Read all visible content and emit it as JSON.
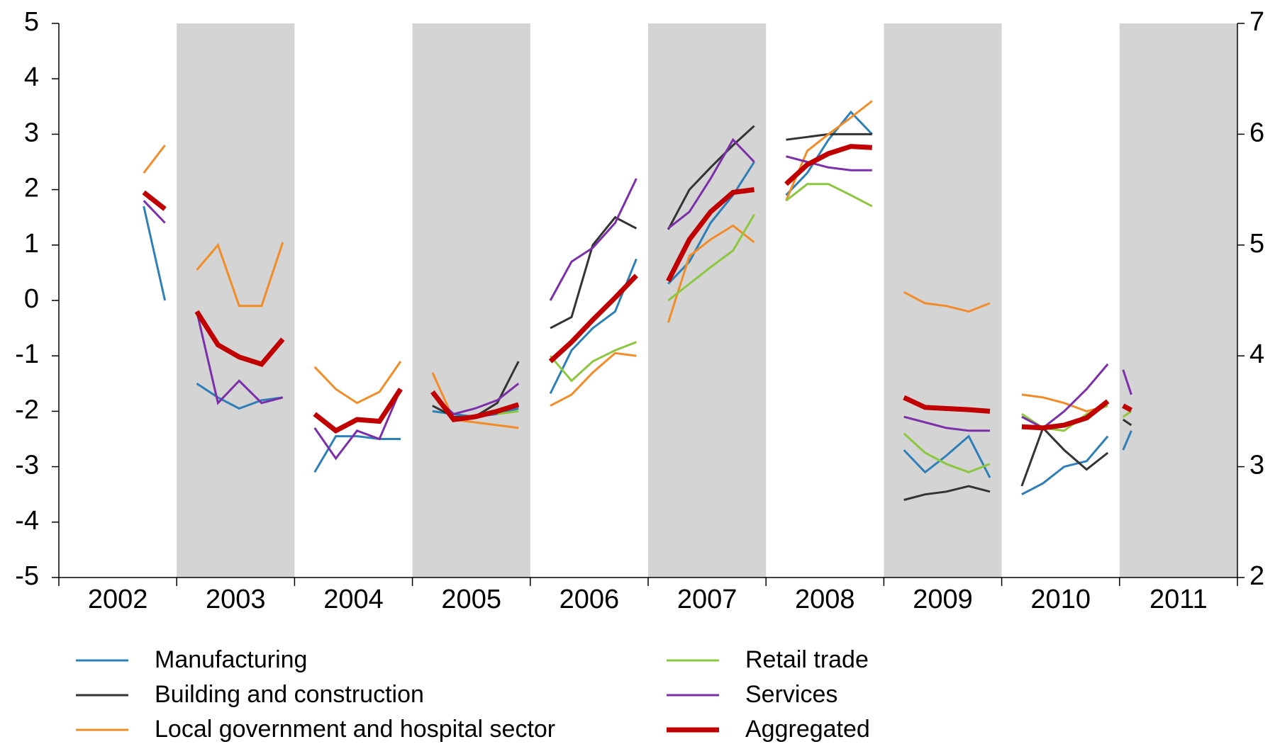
{
  "chart_data": {
    "type": "line",
    "x": [
      2002.17,
      2002.35,
      2002.53,
      2002.72,
      2002.9,
      2003,
      2003.17,
      2003.35,
      2003.53,
      2003.72,
      2003.9,
      2004,
      2004.17,
      2004.35,
      2004.53,
      2004.72,
      2004.9,
      2005,
      2005.17,
      2005.35,
      2005.53,
      2005.72,
      2005.9,
      2006,
      2006.17,
      2006.35,
      2006.53,
      2006.72,
      2006.9,
      2007,
      2007.17,
      2007.35,
      2007.53,
      2007.72,
      2007.9,
      2008,
      2008.17,
      2008.35,
      2008.53,
      2008.72,
      2008.9,
      2009,
      2009.17,
      2009.35,
      2009.53,
      2009.72,
      2009.9,
      2010,
      2010.17,
      2010.35,
      2010.53,
      2010.72,
      2010.9,
      2011,
      2011.03,
      2011.1
    ],
    "xlim": [
      2002,
      2012
    ],
    "xticks": [
      {
        "value": 2002.5,
        "label": "2002"
      },
      {
        "value": 2003.5,
        "label": "2003"
      },
      {
        "value": 2004.5,
        "label": "2004"
      },
      {
        "value": 2005.5,
        "label": "2005"
      },
      {
        "value": 2006.5,
        "label": "2006"
      },
      {
        "value": 2007.5,
        "label": "2007"
      },
      {
        "value": 2008.5,
        "label": "2008"
      },
      {
        "value": 2009.5,
        "label": "2009"
      },
      {
        "value": 2010.5,
        "label": "2010"
      },
      {
        "value": 2011.5,
        "label": "2011"
      }
    ],
    "ylim": [
      -5,
      5
    ],
    "yticks": [
      -5,
      -4,
      -3,
      -2,
      -1,
      0,
      1,
      2,
      3,
      4,
      5
    ],
    "y2lim": [
      2,
      7
    ],
    "y2ticks": [
      2,
      3,
      4,
      5,
      6,
      7
    ],
    "shading": "#d4d4d4",
    "legend": "bottom",
    "series": [
      {
        "name": "Manufacturing",
        "color": "#2e7fb8",
        "values": [
          null,
          null,
          null,
          1.7,
          0.0,
          null,
          -1.5,
          -1.75,
          -1.95,
          -1.8,
          -1.75,
          null,
          -3.1,
          -2.45,
          -2.45,
          -2.5,
          -2.5,
          null,
          -2.0,
          -2.05,
          -2.1,
          -2.05,
          -1.95,
          null,
          -1.68,
          -0.9,
          -0.5,
          -0.2,
          0.75,
          null,
          0.3,
          0.7,
          1.4,
          1.9,
          2.5,
          null,
          1.9,
          2.3,
          2.9,
          3.4,
          3.0,
          null,
          -2.7,
          -3.1,
          -2.8,
          -2.45,
          -3.2,
          null,
          -3.5,
          -3.3,
          -3.0,
          -2.9,
          -2.45,
          null,
          -2.7,
          -2.35
        ]
      },
      {
        "name": "Building and construction",
        "color": "#333333",
        "values": [
          null,
          null,
          null,
          null,
          null,
          null,
          null,
          null,
          null,
          null,
          null,
          null,
          null,
          null,
          null,
          null,
          null,
          null,
          -1.9,
          -2.1,
          -2.1,
          -1.85,
          -1.1,
          null,
          -0.5,
          -0.3,
          1.0,
          1.5,
          1.3,
          null,
          1.28,
          2.0,
          2.4,
          2.8,
          3.15,
          null,
          2.9,
          2.95,
          3.0,
          3.0,
          3.0,
          null,
          -3.6,
          -3.5,
          -3.45,
          -3.35,
          -3.45,
          null,
          -3.35,
          -2.3,
          -2.7,
          -3.05,
          -2.75,
          null,
          -2.15,
          -2.25
        ]
      },
      {
        "name": "Local government and hospital sector",
        "color": "#f28c28",
        "values": [
          null,
          null,
          null,
          2.3,
          2.8,
          null,
          0.55,
          1.0,
          -0.1,
          -0.1,
          1.05,
          null,
          -1.2,
          -1.6,
          -1.85,
          -1.65,
          -1.1,
          null,
          -1.3,
          -2.15,
          -2.2,
          -2.25,
          -2.3,
          null,
          -1.9,
          -1.7,
          -1.3,
          -0.95,
          -1.0,
          null,
          -0.4,
          0.8,
          1.1,
          1.35,
          1.05,
          null,
          1.8,
          2.7,
          3.0,
          3.3,
          3.6,
          null,
          0.15,
          -0.05,
          -0.1,
          -0.2,
          -0.05,
          null,
          -1.7,
          -1.75,
          -1.85,
          -2.0,
          -1.9,
          null,
          null,
          null
        ]
      },
      {
        "name": "Retail trade",
        "color": "#8dc63f",
        "values": [
          null,
          null,
          null,
          null,
          null,
          null,
          null,
          null,
          null,
          null,
          null,
          null,
          null,
          null,
          null,
          null,
          null,
          null,
          null,
          null,
          null,
          -2.05,
          -2.0,
          null,
          -1.0,
          -1.45,
          -1.1,
          -0.9,
          -0.75,
          null,
          0.0,
          0.3,
          0.6,
          0.9,
          1.55,
          null,
          1.8,
          2.1,
          2.1,
          1.9,
          1.7,
          null,
          -2.4,
          -2.75,
          -2.95,
          -3.1,
          -2.95,
          null,
          -2.05,
          -2.3,
          -2.35,
          -2.05,
          -1.9,
          null,
          -2.1,
          -2.0
        ]
      },
      {
        "name": "Services",
        "color": "#7b2fa8",
        "values": [
          null,
          null,
          null,
          1.8,
          1.4,
          null,
          -0.2,
          -1.85,
          -1.45,
          -1.85,
          -1.75,
          null,
          -2.3,
          -2.85,
          -2.35,
          -2.5,
          -1.6,
          null,
          -1.7,
          -2.05,
          -1.95,
          -1.8,
          -1.5,
          null,
          0.0,
          0.7,
          0.95,
          1.4,
          2.2,
          null,
          1.3,
          1.6,
          2.2,
          2.9,
          2.5,
          null,
          2.6,
          2.5,
          2.4,
          2.35,
          2.35,
          null,
          -2.1,
          -2.2,
          -2.3,
          -2.35,
          -2.35,
          null,
          -2.1,
          -2.3,
          -2.0,
          -1.6,
          -1.15,
          null,
          -1.25,
          -1.7
        ]
      },
      {
        "name": "Aggregated",
        "color": "#c00000",
        "style": "bold",
        "values": [
          null,
          null,
          null,
          1.95,
          1.65,
          null,
          -0.2,
          -0.8,
          -1.02,
          -1.15,
          -0.7,
          null,
          -2.05,
          -2.35,
          -2.15,
          -2.18,
          -1.6,
          null,
          -1.65,
          -2.15,
          -2.1,
          -2.0,
          -1.88,
          null,
          -1.1,
          -0.75,
          -0.35,
          0.05,
          0.45,
          null,
          0.35,
          1.1,
          1.6,
          1.95,
          2.0,
          null,
          2.1,
          2.45,
          2.65,
          2.78,
          2.76,
          null,
          -1.75,
          -1.93,
          -1.95,
          -1.97,
          -2.0,
          null,
          -2.28,
          -2.3,
          -2.25,
          -2.12,
          -1.82,
          null,
          -1.9,
          -1.98
        ]
      }
    ]
  }
}
